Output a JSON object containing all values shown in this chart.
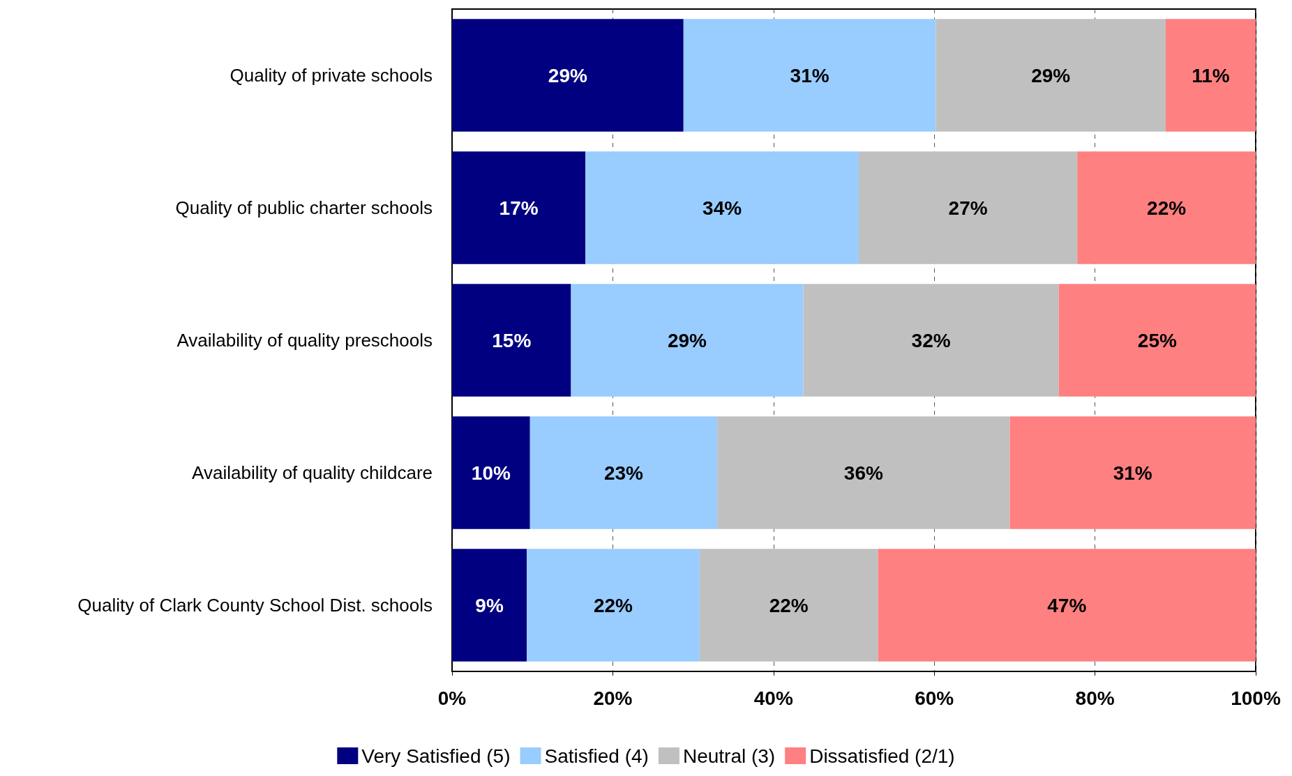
{
  "chart_data": {
    "type": "bar",
    "orientation": "horizontal",
    "stacked": true,
    "categories": [
      "Quality of private schools",
      "Quality of public charter schools",
      "Availability of quality preschools",
      "Availability of quality childcare",
      "Quality of Clark County School Dist. schools"
    ],
    "series": [
      {
        "name": "Very Satisfied (5)",
        "color": "#000080",
        "values": [
          28.8,
          16.6,
          14.8,
          9.7,
          9.3
        ],
        "value_labels": [
          "29%",
          "17%",
          "15%",
          "10%",
          "9%"
        ]
      },
      {
        "name": "Satisfied (4)",
        "color": "#99ccff",
        "values": [
          31.4,
          34.0,
          28.9,
          23.3,
          21.5
        ],
        "value_labels": [
          "31%",
          "34%",
          "29%",
          "23%",
          "22%"
        ]
      },
      {
        "name": "Neutral (3)",
        "color": "#c0c0c0",
        "values": [
          28.6,
          27.2,
          31.8,
          36.4,
          22.2
        ],
        "value_labels": [
          "29%",
          "27%",
          "32%",
          "36%",
          "22%"
        ]
      },
      {
        "name": "Dissatisfied (2/1)",
        "color": "#ff8080",
        "values": [
          11.2,
          22.2,
          24.5,
          30.6,
          47.0
        ],
        "value_labels": [
          "11%",
          "22%",
          "25%",
          "31%",
          "47%"
        ]
      }
    ],
    "xlim": [
      0,
      100
    ],
    "xticks": [
      {
        "value": 0,
        "label": "0%"
      },
      {
        "value": 20,
        "label": "20%"
      },
      {
        "value": 40,
        "label": "40%"
      },
      {
        "value": 60,
        "label": "60%"
      },
      {
        "value": 80,
        "label": "80%"
      },
      {
        "value": 100,
        "label": "100%"
      }
    ],
    "grid": "x",
    "legend": "bottom"
  }
}
